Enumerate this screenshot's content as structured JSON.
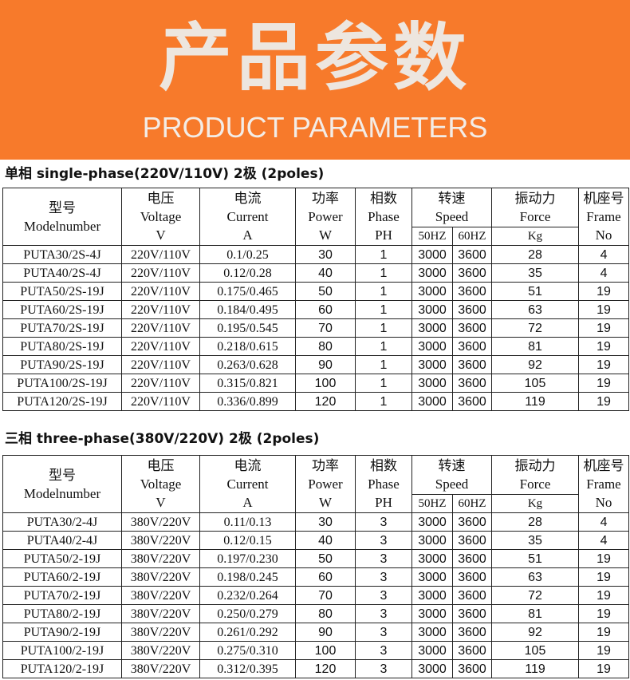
{
  "banner": {
    "title_cn": "产品参数",
    "title_en": "PRODUCT PARAMETERS",
    "color": "#F77A2B"
  },
  "headers": {
    "model": [
      "型号",
      "Modelnumber"
    ],
    "voltage": [
      "电压",
      "Voltage",
      "V"
    ],
    "current": [
      "电流",
      "Current",
      "A"
    ],
    "power": [
      "功率",
      "Power",
      "W"
    ],
    "phase": [
      "相数",
      "Phase",
      "PH"
    ],
    "speed": [
      "转速",
      "Speed"
    ],
    "speed_50": "50HZ",
    "speed_60": "60HZ",
    "force": [
      "振动力",
      "Force",
      "Kg"
    ],
    "frame": [
      "机座号",
      "Frame",
      "No"
    ]
  },
  "tables": [
    {
      "title": "单相 single-phase(220V/110V)  2极 (2poles)",
      "rows": [
        [
          "PUTA30/2S-4J",
          "220V/110V",
          "0.1/0.25",
          "30",
          "1",
          "3000",
          "3600",
          "28",
          "4"
        ],
        [
          "PUTA40/2S-4J",
          "220V/110V",
          "0.12/0.28",
          "40",
          "1",
          "3000",
          "3600",
          "35",
          "4"
        ],
        [
          "PUTA50/2S-19J",
          "220V/110V",
          "0.175/0.465",
          "50",
          "1",
          "3000",
          "3600",
          "51",
          "19"
        ],
        [
          "PUTA60/2S-19J",
          "220V/110V",
          "0.184/0.495",
          "60",
          "1",
          "3000",
          "3600",
          "63",
          "19"
        ],
        [
          "PUTA70/2S-19J",
          "220V/110V",
          "0.195/0.545",
          "70",
          "1",
          "3000",
          "3600",
          "72",
          "19"
        ],
        [
          "PUTA80/2S-19J",
          "220V/110V",
          "0.218/0.615",
          "80",
          "1",
          "3000",
          "3600",
          "81",
          "19"
        ],
        [
          "PUTA90/2S-19J",
          "220V/110V",
          "0.263/0.628",
          "90",
          "1",
          "3000",
          "3600",
          "92",
          "19"
        ],
        [
          "PUTA100/2S-19J",
          "220V/110V",
          "0.315/0.821",
          "100",
          "1",
          "3000",
          "3600",
          "105",
          "19"
        ],
        [
          "PUTA120/2S-19J",
          "220V/110V",
          "0.336/0.899",
          "120",
          "1",
          "3000",
          "3600",
          "119",
          "19"
        ]
      ]
    },
    {
      "title": "三相 three-phase(380V/220V)  2极 (2poles)",
      "rows": [
        [
          "PUTA30/2-4J",
          "380V/220V",
          "0.11/0.13",
          "30",
          "3",
          "3000",
          "3600",
          "28",
          "4"
        ],
        [
          "PUTA40/2-4J",
          "380V/220V",
          "0.12/0.15",
          "40",
          "3",
          "3000",
          "3600",
          "35",
          "4"
        ],
        [
          "PUTA50/2-19J",
          "380V/220V",
          "0.197/0.230",
          "50",
          "3",
          "3000",
          "3600",
          "51",
          "19"
        ],
        [
          "PUTA60/2-19J",
          "380V/220V",
          "0.198/0.245",
          "60",
          "3",
          "3000",
          "3600",
          "63",
          "19"
        ],
        [
          "PUTA70/2-19J",
          "380V/220V",
          "0.232/0.264",
          "70",
          "3",
          "3000",
          "3600",
          "72",
          "19"
        ],
        [
          "PUTA80/2-19J",
          "380V/220V",
          "0.250/0.279",
          "80",
          "3",
          "3000",
          "3600",
          "81",
          "19"
        ],
        [
          "PUTA90/2-19J",
          "380V/220V",
          "0.261/0.292",
          "90",
          "3",
          "3000",
          "3600",
          "92",
          "19"
        ],
        [
          "PUTA100/2-19J",
          "380V/220V",
          "0.275/0.310",
          "100",
          "3",
          "3000",
          "3600",
          "105",
          "19"
        ],
        [
          "PUTA120/2-19J",
          "380V/220V",
          "0.312/0.395",
          "120",
          "3",
          "3000",
          "3600",
          "119",
          "19"
        ]
      ]
    }
  ]
}
